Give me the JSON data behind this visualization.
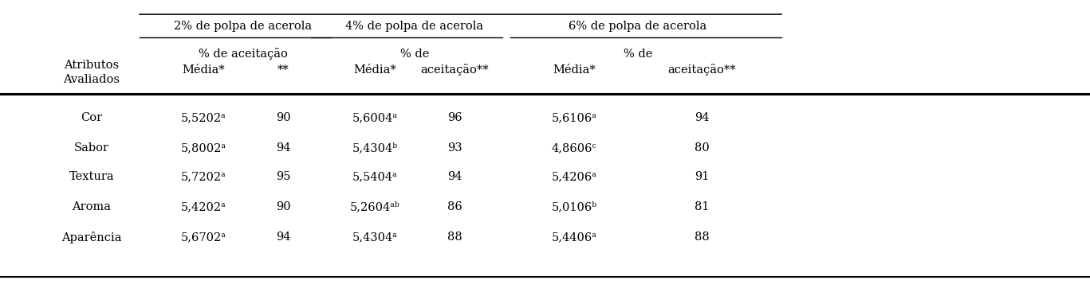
{
  "col_headers_top": [
    "2% de polpa de acerola",
    "4% de polpa de acerola",
    "6% de polpa de acerola"
  ],
  "row_header_line1": "Atributos",
  "row_header_line2": "Avaliados",
  "rows": [
    {
      "attr": "Cor",
      "m1": "5,5202ᵃ",
      "p1": "90",
      "m2": "5,6004ᵃ",
      "p2": "96",
      "m3": "5,6106ᵃ",
      "p3": "94"
    },
    {
      "attr": "Sabor",
      "m1": "5,8002ᵃ",
      "p1": "94",
      "m2": "5,4304ᵇ",
      "p2": "93",
      "m3": "4,8606ᶜ",
      "p3": "80"
    },
    {
      "attr": "Textura",
      "m1": "5,7202ᵃ",
      "p1": "95",
      "m2": "5,5404ᵃ",
      "p2": "94",
      "m3": "5,4206ᵃ",
      "p3": "91"
    },
    {
      "attr": "Aroma",
      "m1": "5,4202ᵃ",
      "p1": "90",
      "m2": "5,2604ᵃᵇ",
      "p2": "86",
      "m3": "5,0106ᵇ",
      "p3": "81"
    },
    {
      "attr": "Aparência",
      "m1": "5,6702ᵃ",
      "p1": "94",
      "m2": "5,4304ᵃ",
      "p2": "88",
      "m3": "5,4406ᵃ",
      "p3": "88"
    }
  ],
  "background_color": "#ffffff",
  "text_color": "#000000",
  "font_size": 10.5
}
